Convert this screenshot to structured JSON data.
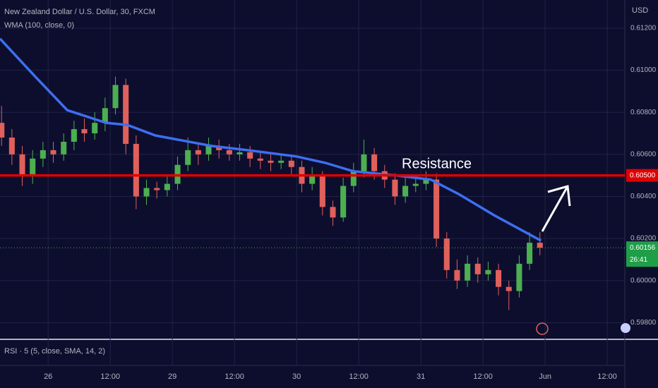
{
  "chart_data": {
    "type": "candlestick",
    "title": "New Zealand Dollar / U.S. Dollar, 30, FXCM",
    "axis_unit": "USD",
    "indicator": "RSI · 5 (5, close, SMA, 14, 2)",
    "annotation": "Resistance",
    "countdown": "26:41",
    "up_color": "#4caf50",
    "down_color": "#e0605b",
    "grid": true,
    "x": [
      -9,
      -7,
      -5,
      -3,
      -1,
      1,
      3,
      5,
      7,
      9,
      11,
      13,
      15,
      17,
      19,
      21,
      23,
      25,
      27,
      29,
      31,
      33,
      35,
      37,
      39,
      41,
      43,
      45,
      47,
      49,
      51,
      53,
      55,
      57,
      59,
      61,
      63,
      65,
      67,
      69,
      71,
      73,
      75,
      77,
      79,
      81,
      83,
      85,
      87,
      89,
      91,
      93,
      95
    ],
    "open": [
      0.6075,
      0.6068,
      0.606,
      0.605,
      0.6058,
      0.6062,
      0.606,
      0.6066,
      0.6072,
      0.607,
      0.6075,
      0.6082,
      0.6093,
      0.6065,
      0.604,
      0.6044,
      0.6043,
      0.6046,
      0.6055,
      0.6062,
      0.606,
      0.6064,
      0.6062,
      0.606,
      0.6061,
      0.6058,
      0.6057,
      0.6056,
      0.6057,
      0.6054,
      0.6046,
      0.605,
      0.6035,
      0.603,
      0.6045,
      0.6052,
      0.606,
      0.6052,
      0.6048,
      0.604,
      0.6045,
      0.6046,
      0.6048,
      0.602,
      0.6005,
      0.6,
      0.6008,
      0.6003,
      0.6005,
      0.5997,
      0.5995,
      0.6008,
      0.6018
    ],
    "high": [
      0.6083,
      0.6072,
      0.6064,
      0.6062,
      0.6066,
      0.6066,
      0.607,
      0.6076,
      0.6077,
      0.608,
      0.6087,
      0.6097,
      0.6096,
      0.6069,
      0.6048,
      0.6047,
      0.605,
      0.6059,
      0.6068,
      0.6065,
      0.6068,
      0.6067,
      0.6065,
      0.6065,
      0.6064,
      0.6061,
      0.606,
      0.606,
      0.606,
      0.6057,
      0.6054,
      0.6052,
      0.6038,
      0.6049,
      0.6056,
      0.6067,
      0.6063,
      0.6055,
      0.6051,
      0.6049,
      0.6049,
      0.6052,
      0.6051,
      0.6023,
      0.601,
      0.6012,
      0.6011,
      0.6009,
      0.6008,
      0.6,
      0.6012,
      0.6023,
      0.6023
    ],
    "low": [
      0.6064,
      0.6055,
      0.6045,
      0.6046,
      0.6054,
      0.6056,
      0.6057,
      0.6062,
      0.6066,
      0.6067,
      0.6071,
      0.6079,
      0.606,
      0.6034,
      0.6036,
      0.6039,
      0.604,
      0.6043,
      0.6052,
      0.6055,
      0.6057,
      0.6058,
      0.6057,
      0.6057,
      0.6054,
      0.6053,
      0.6052,
      0.6053,
      0.605,
      0.6042,
      0.6043,
      0.6031,
      0.6026,
      0.6028,
      0.6042,
      0.6049,
      0.6048,
      0.6044,
      0.6036,
      0.6037,
      0.6042,
      0.6043,
      0.6016,
      0.6001,
      0.5996,
      0.5997,
      0.5999,
      0.6,
      0.5993,
      0.5986,
      0.5992,
      0.6005,
      0.6012
    ],
    "close": [
      0.6068,
      0.606,
      0.605,
      0.6058,
      0.6062,
      0.606,
      0.6066,
      0.6072,
      0.607,
      0.6075,
      0.6082,
      0.6093,
      0.6065,
      0.604,
      0.6044,
      0.6043,
      0.6046,
      0.6055,
      0.6062,
      0.606,
      0.6064,
      0.6062,
      0.606,
      0.6061,
      0.6058,
      0.6057,
      0.6056,
      0.6057,
      0.6054,
      0.6046,
      0.605,
      0.6035,
      0.603,
      0.6045,
      0.6052,
      0.606,
      0.6052,
      0.6048,
      0.604,
      0.6045,
      0.6046,
      0.6048,
      0.602,
      0.6005,
      0.6,
      0.6008,
      0.6003,
      0.6005,
      0.5997,
      0.5995,
      0.6008,
      0.6018,
      0.60156
    ],
    "last_price_label": "0.60156",
    "series": [
      {
        "name": "WMA (100, close, 0)",
        "color": "#3d6ff0",
        "x": [
          -9.3,
          -2.5,
          3.7,
          11.2,
          15.3,
          20.7,
          31.6,
          38.5,
          48,
          53.5,
          58.9,
          67.1,
          73.9,
          79.4,
          86.2,
          95.2
        ],
        "values": [
          0.6115,
          0.6097,
          0.6081,
          0.6075,
          0.6074,
          0.6069,
          0.6064,
          0.6062,
          0.6059,
          0.6056,
          0.6052,
          0.605,
          0.6048,
          0.6041,
          0.6031,
          0.6019
        ]
      }
    ],
    "hline": {
      "value": 0.605,
      "label": "0.60500",
      "color": "#e00000"
    },
    "xlim": [
      -9.3,
      111.4
    ],
    "ylim": [
      0.59724,
      0.61334
    ],
    "yticks": [
      {
        "value": 0.598,
        "label": "0.59800"
      },
      {
        "value": 0.6,
        "label": "0.60000"
      },
      {
        "value": 0.602,
        "label": "0.60200"
      },
      {
        "value": 0.604,
        "label": "0.60400"
      },
      {
        "value": 0.606,
        "label": "0.60600"
      },
      {
        "value": 0.608,
        "label": "0.60800"
      },
      {
        "value": 0.61,
        "label": "0.61000"
      },
      {
        "value": 0.612,
        "label": "0.61200"
      }
    ],
    "xticks": [
      {
        "value": 0,
        "label": "26"
      },
      {
        "value": 12,
        "label": "12:00"
      },
      {
        "value": 24,
        "label": "29"
      },
      {
        "value": 36,
        "label": "12:00"
      },
      {
        "value": 48,
        "label": "30"
      },
      {
        "value": 60,
        "label": "12:00"
      },
      {
        "value": 72,
        "label": "31"
      },
      {
        "value": 84,
        "label": "12:00"
      },
      {
        "value": 96,
        "label": "Jun"
      },
      {
        "value": 108,
        "label": "12:00"
      }
    ]
  }
}
